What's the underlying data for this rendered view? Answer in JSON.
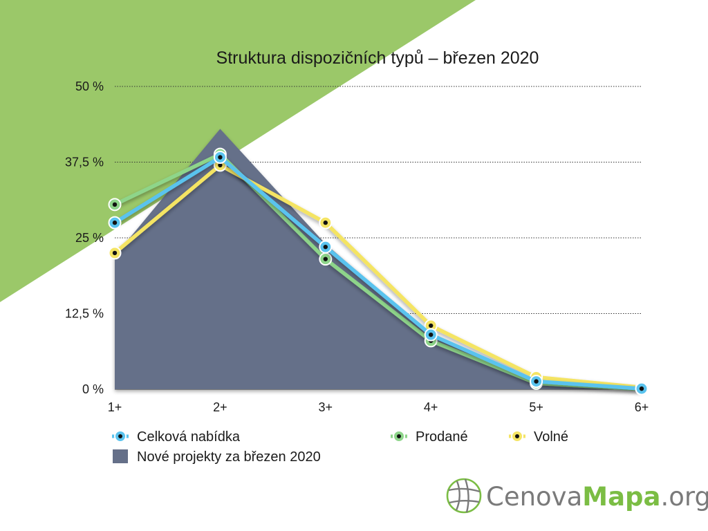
{
  "chart_data": {
    "type": "line",
    "title": "Struktura dispozičních typů – březen 2020",
    "categories": [
      "1+",
      "2+",
      "3+",
      "4+",
      "5+",
      "6+"
    ],
    "y_ticks": [
      "0 %",
      "12,5 %",
      "25 %",
      "37,5 %",
      "50 %"
    ],
    "ylim": [
      0,
      50
    ],
    "grid": true,
    "area": {
      "name": "Nové projekty za březen 2020",
      "color": "#657089",
      "values": [
        22,
        43,
        24,
        9,
        1,
        0
      ]
    },
    "series": [
      {
        "name": "Prodané",
        "color": "#8ed58a",
        "values": [
          30.5,
          38.8,
          21.5,
          8,
          1,
          0
        ]
      },
      {
        "name": "Volné",
        "color": "#f4e464",
        "values": [
          22.5,
          37,
          27.5,
          10.5,
          2,
          0.3
        ]
      },
      {
        "name": "Celková nabídka",
        "color": "#5ac3ee",
        "values": [
          27.5,
          38.3,
          23.5,
          9,
          1.3,
          0.1
        ]
      }
    ],
    "legend_position": "bottom"
  },
  "colors": {
    "background_accent": "#9bc869",
    "logo_gray": "#7a7a7a",
    "logo_green": "#7bbd44"
  },
  "logo": {
    "part1": "Cenova",
    "part2": "Mapa",
    "part3": ".org"
  }
}
